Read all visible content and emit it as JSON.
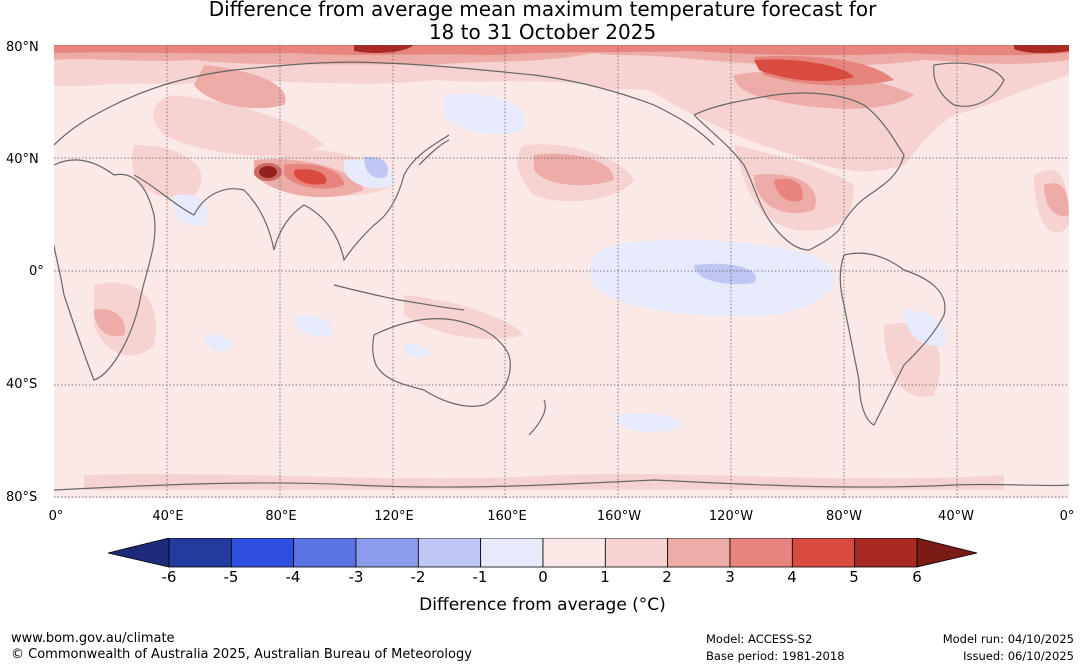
{
  "title": {
    "line1": "Difference from average mean maximum temperature forecast for",
    "line2": "18 to 31 October 2025"
  },
  "map": {
    "lat_labels": [
      "80°N",
      "40°N",
      "0°",
      "40°S",
      "80°S"
    ],
    "lon_labels": [
      "0°",
      "40°E",
      "80°E",
      "120°E",
      "160°E",
      "160°W",
      "120°W",
      "80°W",
      "40°W",
      "0°"
    ]
  },
  "colorbar": {
    "ticks": [
      "-6",
      "-5",
      "-4",
      "-3",
      "-2",
      "-1",
      "0",
      "1",
      "2",
      "3",
      "4",
      "5",
      "6"
    ],
    "colors": [
      "#243b9e",
      "#2f4fe0",
      "#5b74e4",
      "#8a9ceb",
      "#bec7f3",
      "#e6eafb",
      "#fbe9e8",
      "#f6d3d1",
      "#eeaca8",
      "#e6847d",
      "#d94a3f",
      "#a82a22"
    ],
    "low_extend_color": "#1f2a7a",
    "high_extend_color": "#7a1b16",
    "label": "Difference from average (°C)"
  },
  "footer": {
    "website": "www.bom.gov.au/climate",
    "copyright": "© Commonwealth of Australia 2025, Australian Bureau of Meteorology",
    "model": "Model: ACCESS-S2",
    "base_period": "Base period: 1981-2018",
    "model_run": "Model run: 04/10/2025",
    "issued": "Issued: 06/10/2025"
  }
}
